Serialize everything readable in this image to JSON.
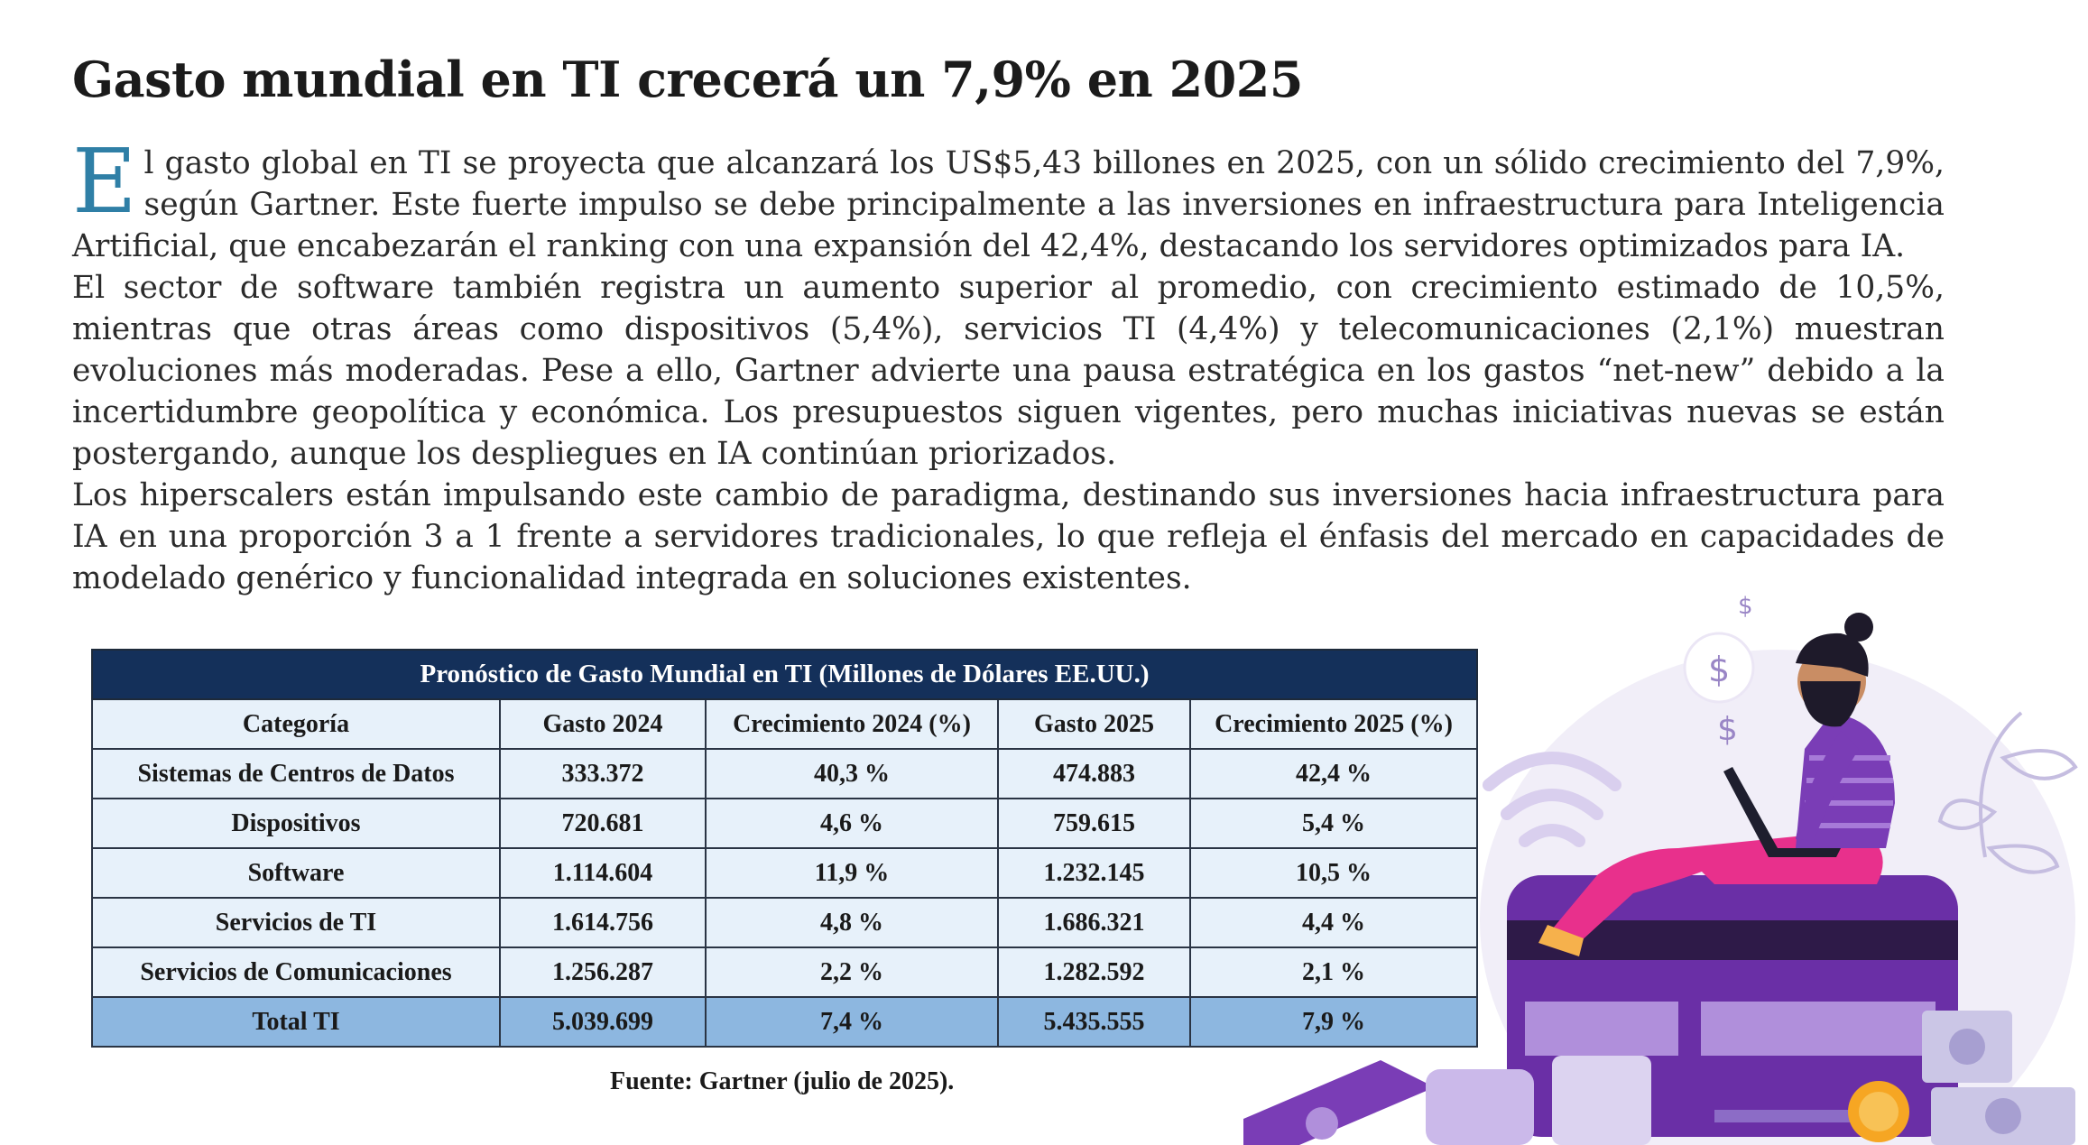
{
  "article": {
    "title": "Gasto mundial en TI crecerá un 7,9% en 2025",
    "dropcap": "E",
    "p1": "l gasto global en TI se proyecta que alcanzará los US$5,43 billones en 2025, con un sólido crecimiento del 7,9%, según Gartner. Este fuerte impulso se debe principalmente a las inversiones en infraestructura para Inteligencia Artificial, que encabezarán el ranking con una expansión del 42,4%, destacando los servidores optimizados para IA.",
    "p2": "El sector de software también registra un aumento superior al promedio, con crecimiento estimado de 10,5%, mientras que otras áreas como dispositivos (5,4%), servicios TI (4,4%) y telecomunicaciones (2,1%) muestran evoluciones más moderadas. Pese a ello, Gartner advierte una pausa estratégica en los gastos “net-new” debido a la incertidumbre geopolítica y económica. Los presupuestos siguen vigentes, pero muchas iniciativas nuevas se están postergando, aunque los despliegues en IA continúan priorizados.",
    "p3": "Los hiperscalers están impulsando este cambio de paradigma, destinando sus inversiones hacia infraestructura para IA en una proporción 3 a 1 frente a servidores tradicionales, lo que refleja el énfasis del mercado en capacidades de modelado genérico y funcionalidad integrada en soluciones existentes."
  },
  "table": {
    "caption": "Pronóstico de Gasto Mundial en TI (Millones de Dólares EE.UU.)",
    "headers": [
      "Categoría",
      "Gasto 2024",
      "Crecimiento 2024 (%)",
      "Gasto 2025",
      "Crecimiento 2025 (%)"
    ],
    "rows": [
      [
        "Sistemas de Centros de Datos",
        "333.372",
        "40,3 %",
        "474.883",
        "42,4 %"
      ],
      [
        "Dispositivos",
        "720.681",
        "4,6 %",
        "759.615",
        "5,4 %"
      ],
      [
        "Software",
        "1.114.604",
        "11,9 %",
        "1.232.145",
        "10,5 %"
      ],
      [
        "Servicios de TI",
        "1.614.756",
        "4,8 %",
        "1.686.321",
        "4,4 %"
      ],
      [
        "Servicios de Comunicaciones",
        "1.256.287",
        "2,2 %",
        "1.282.592",
        "2,1 %"
      ]
    ],
    "total": [
      "Total TI",
      "5.039.699",
      "7,4 %",
      "5.435.555",
      "7,9 %"
    ]
  },
  "source": "Fuente: Gartner (julio de 2025).",
  "illustration": {
    "icon": "person-with-laptop-on-credit-card-illustration",
    "dollar_sign": "$",
    "colors": {
      "purple": "#6a2fa6",
      "pink": "#e8308c",
      "lavender": "#c9b8e8"
    }
  }
}
